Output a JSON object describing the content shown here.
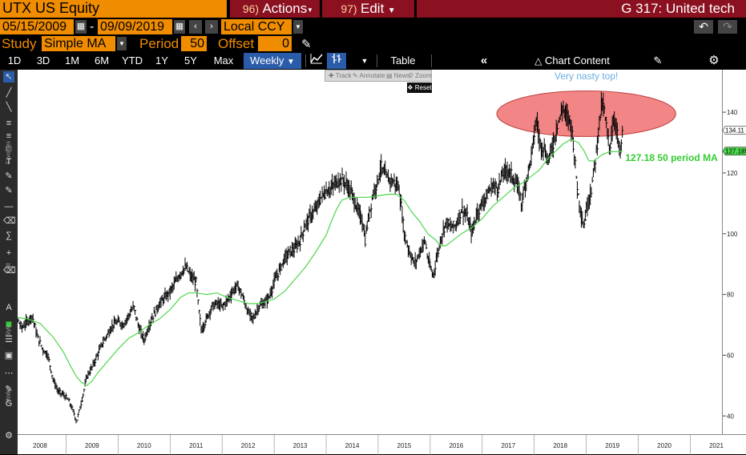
{
  "header": {
    "security": "UTX US Equity",
    "actions_num": "96)",
    "actions_label": "Actions",
    "edit_num": "97)",
    "edit_label": "Edit",
    "chart_title": "G 317: United tech"
  },
  "controls": {
    "start_date": "05/15/2009",
    "dash": "-",
    "end_date": "09/09/2019",
    "currency": "Local CCY",
    "study_label": "Study",
    "study_value": "Simple MA",
    "period_label": "Period",
    "period_value": "50",
    "offset_label": "Offset",
    "offset_value": "0"
  },
  "toolbar": {
    "ranges": [
      "1D",
      "3D",
      "1M",
      "6M",
      "YTD",
      "1Y",
      "5Y",
      "Max"
    ],
    "frequency": "Weekly",
    "table_label": "Table",
    "chart_content_label": "Chart Content"
  },
  "chart_tools": {
    "track": "Track",
    "annotate": "Annotate",
    "news": "News",
    "zoom": "Zoom",
    "reset": "Reset"
  },
  "sidebar": {
    "favorites": "Favorites",
    "edit": "Edit",
    "style": "Style",
    "modes": "Modes"
  },
  "chart_data": {
    "type": "line",
    "series": [
      {
        "values_by_year": {
          "2007.75": 72,
          "2007.85": 74,
          "2007.95": 75,
          "2008.05": 72,
          "2008.15": 69,
          "2008.25": 71,
          "2008.35": 73,
          "2008.45": 66,
          "2008.55": 62,
          "2008.65": 60,
          "2008.75": 52,
          "2008.85": 48,
          "2008.95": 47,
          "2009.05": 45,
          "2009.15": 41,
          "2009.2": 38,
          "2009.3": 45,
          "2009.4": 53,
          "2009.5": 56,
          "2009.6": 60,
          "2009.7": 64,
          "2009.8": 67,
          "2009.9": 70,
          "2010.0": 71,
          "2010.1": 70,
          "2010.2": 73,
          "2010.3": 76,
          "2010.4": 69,
          "2010.5": 65,
          "2010.6": 70,
          "2010.7": 74,
          "2010.8": 77,
          "2010.9": 79,
          "2011.0": 81,
          "2011.1": 84,
          "2011.2": 87,
          "2011.3": 89,
          "2011.4": 86,
          "2011.5": 84,
          "2011.55": 75,
          "2011.6": 68,
          "2011.7": 72,
          "2011.8": 76,
          "2011.9": 77,
          "2012.0": 76,
          "2012.1": 78,
          "2012.2": 81,
          "2012.3": 83,
          "2012.4": 79,
          "2012.5": 74,
          "2012.6": 72,
          "2012.7": 76,
          "2012.8": 77,
          "2012.9": 79,
          "2013.0": 84,
          "2013.1": 88,
          "2013.2": 92,
          "2013.3": 94,
          "2013.4": 95,
          "2013.5": 98,
          "2013.6": 103,
          "2013.7": 106,
          "2013.8": 108,
          "2013.9": 112,
          "2014.0": 114,
          "2014.1": 115,
          "2014.2": 117,
          "2014.3": 118,
          "2014.4": 116,
          "2014.5": 113,
          "2014.6": 108,
          "2014.7": 104,
          "2014.75": 98,
          "2014.8": 104,
          "2014.9": 113,
          "2015.0": 118,
          "2015.05": 122,
          "2015.1": 120,
          "2015.2": 118,
          "2015.3": 117,
          "2015.4": 115,
          "2015.45": 108,
          "2015.5": 100,
          "2015.6": 94,
          "2015.7": 90,
          "2015.8": 94,
          "2015.9": 98,
          "2015.95": 92,
          "2016.05": 86,
          "2016.1": 90,
          "2016.2": 98,
          "2016.3": 104,
          "2016.4": 102,
          "2016.5": 103,
          "2016.6": 108,
          "2016.7": 106,
          "2016.8": 100,
          "2016.9": 107,
          "2017.0": 110,
          "2017.1": 113,
          "2017.2": 116,
          "2017.3": 115,
          "2017.4": 120,
          "2017.5": 121,
          "2017.6": 118,
          "2017.7": 115,
          "2017.75": 110,
          "2017.85": 118,
          "2017.95": 126,
          "2018.0": 133,
          "2018.05": 138,
          "2018.1": 130,
          "2018.2": 128,
          "2018.25": 124,
          "2018.3": 126,
          "2018.4": 132,
          "2018.45": 137,
          "2018.5": 138,
          "2018.55": 142,
          "2018.6": 139,
          "2018.7": 137,
          "2018.75": 130,
          "2018.8": 120,
          "2018.85": 112,
          "2018.95": 102,
          "2019.0": 108,
          "2019.1": 115,
          "2019.2": 128,
          "2019.25": 137,
          "2019.3": 143,
          "2019.35": 140,
          "2019.4": 133,
          "2019.45": 128,
          "2019.5": 135,
          "2019.55": 138,
          "2019.6": 132,
          "2019.65": 126,
          "2019.68": 130,
          "2019.7": 134.11
        }
      },
      {
        "values_by_year": {
          "2007.75": 70,
          "2008.0": 72.5,
          "2008.25": 72,
          "2008.5": 70.5,
          "2008.75": 66,
          "2008.95": 61,
          "2009.1": 56,
          "2009.2": 53,
          "2009.3": 51,
          "2009.4": 50,
          "2009.5": 51.5,
          "2009.6": 54,
          "2009.8": 58,
          "2010.0": 62,
          "2010.2": 65.5,
          "2010.4": 67.5,
          "2010.6": 70,
          "2010.8": 72,
          "2011.0": 75,
          "2011.2": 79,
          "2011.35": 80.5,
          "2011.5": 80.5,
          "2011.7": 80,
          "2011.9": 80.5,
          "2012.1": 79,
          "2012.3": 78,
          "2012.5": 77,
          "2012.7": 77,
          "2012.9": 78,
          "2013.0": 78.5,
          "2013.2": 81,
          "2013.4": 85,
          "2013.6": 89,
          "2013.8": 94,
          "2014.0": 99.5,
          "2014.1": 104,
          "2014.2": 108,
          "2014.3": 111,
          "2014.45": 112,
          "2014.6": 112,
          "2014.8": 112,
          "2015.0": 112.5,
          "2015.2": 113,
          "2015.35": 113,
          "2015.5": 111,
          "2015.65": 107,
          "2015.8": 104,
          "2015.95": 100,
          "2016.1": 98,
          "2016.2": 96,
          "2016.3": 96,
          "2016.45": 98,
          "2016.6": 100,
          "2016.8": 102,
          "2017.0": 105,
          "2017.2": 109,
          "2017.4": 112,
          "2017.6": 115,
          "2017.8": 117,
          "2017.95": 119,
          "2018.1": 121,
          "2018.25": 124.5,
          "2018.4": 127,
          "2018.55": 129.5,
          "2018.7": 131,
          "2018.85": 130,
          "2018.95": 127.5,
          "2019.05": 124,
          "2019.15": 124,
          "2019.3": 126,
          "2019.45": 127,
          "2019.6": 127,
          "2019.7": 127.18
        }
      }
    ],
    "y_ticks": [
      40,
      60,
      80,
      100,
      120,
      140
    ],
    "x_ticks": [
      "2008",
      "2009",
      "2010",
      "2011",
      "2012",
      "2013",
      "2014",
      "2015",
      "2016",
      "2017",
      "2018",
      "2019",
      "2020",
      "2021"
    ],
    "ylim": [
      34,
      154
    ],
    "xlim": [
      2007.6,
      2021.6
    ],
    "last_price_label": "134.11",
    "ma_price_label": "127.185",
    "annotations": {
      "top_text": "Very nasty top!",
      "ma_text": "127.18 50 period MA"
    },
    "highlight_ellipse": {
      "x_center": 2019.0,
      "x_radius": 1.72,
      "y_center": 139.5,
      "y_radius": 7.5,
      "color": "#f07070"
    },
    "colors": {
      "price": "#000000",
      "ma": "#4cd64c",
      "top_text": "#6aaee0",
      "ma_text": "#33cc33"
    },
    "grid": false
  }
}
